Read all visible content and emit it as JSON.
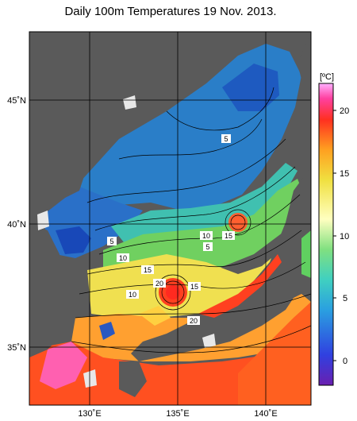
{
  "title": "Daily 100m Temperatures 19 Nov. 2013.",
  "colors": {
    "land": "#5a5a5a",
    "ice_or_gap": "#e8e8e8",
    "grid": "#000000",
    "frame": "#000000"
  },
  "map": {
    "lon_ticks": [
      "130˚E",
      "135˚E",
      "140˚E"
    ],
    "lat_ticks": [
      "45˚N",
      "40˚N",
      "35˚N"
    ],
    "contour_labels": [
      "5",
      "5",
      "10",
      "15",
      "5",
      "10",
      "15",
      "20",
      "15",
      "10",
      "20"
    ]
  },
  "colorbar": {
    "unit": "[ºC]",
    "tick_labels": [
      "20",
      "15",
      "10",
      "5",
      "0"
    ],
    "stops": [
      "#6a1fb0",
      "#3050e0",
      "#2aa0e0",
      "#40d0c0",
      "#80e080",
      "#ffffc0",
      "#f0e040",
      "#ffa020",
      "#ff4020",
      "#ff40a0",
      "#ffb0ff"
    ]
  }
}
